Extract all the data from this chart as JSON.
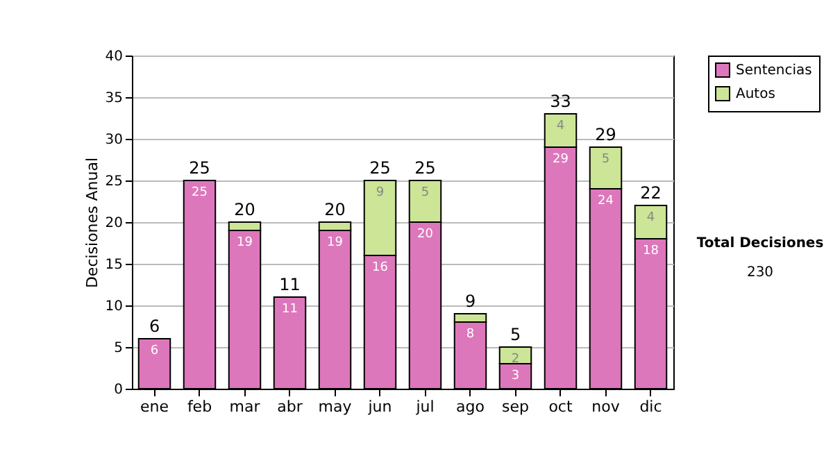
{
  "chart_data": {
    "type": "bar",
    "stacked": true,
    "ylabel": "Decisiones Anual",
    "categories": [
      "ene",
      "feb",
      "mar",
      "abr",
      "may",
      "jun",
      "jul",
      "ago",
      "sep",
      "oct",
      "nov",
      "dic"
    ],
    "series": [
      {
        "name": "Sentencias",
        "color": "#dd77bb",
        "values": [
          6,
          25,
          19,
          11,
          19,
          16,
          20,
          8,
          3,
          29,
          24,
          18
        ],
        "value_labels": [
          "6",
          "25",
          "19",
          "11",
          "19",
          "16",
          "20",
          "8",
          "3",
          "29",
          "24",
          "18"
        ]
      },
      {
        "name": "Autos",
        "color": "#cce596",
        "values": [
          0,
          0,
          1,
          0,
          1,
          9,
          5,
          1,
          2,
          4,
          5,
          4
        ],
        "value_labels": [
          null,
          null,
          null,
          null,
          null,
          "9",
          "5",
          null,
          "2",
          "4",
          "5",
          "4"
        ]
      }
    ],
    "totals": [
      "6",
      "25",
      "20",
      "11",
      "20",
      "25",
      "25",
      "9",
      "5",
      "33",
      "29",
      "22"
    ],
    "ylim": [
      0,
      40
    ],
    "yticks": [
      0,
      5,
      10,
      15,
      20,
      25,
      30,
      35,
      40
    ],
    "grid": "y",
    "legend": "right",
    "annotations": [
      "Total Decisiones",
      "230"
    ]
  }
}
